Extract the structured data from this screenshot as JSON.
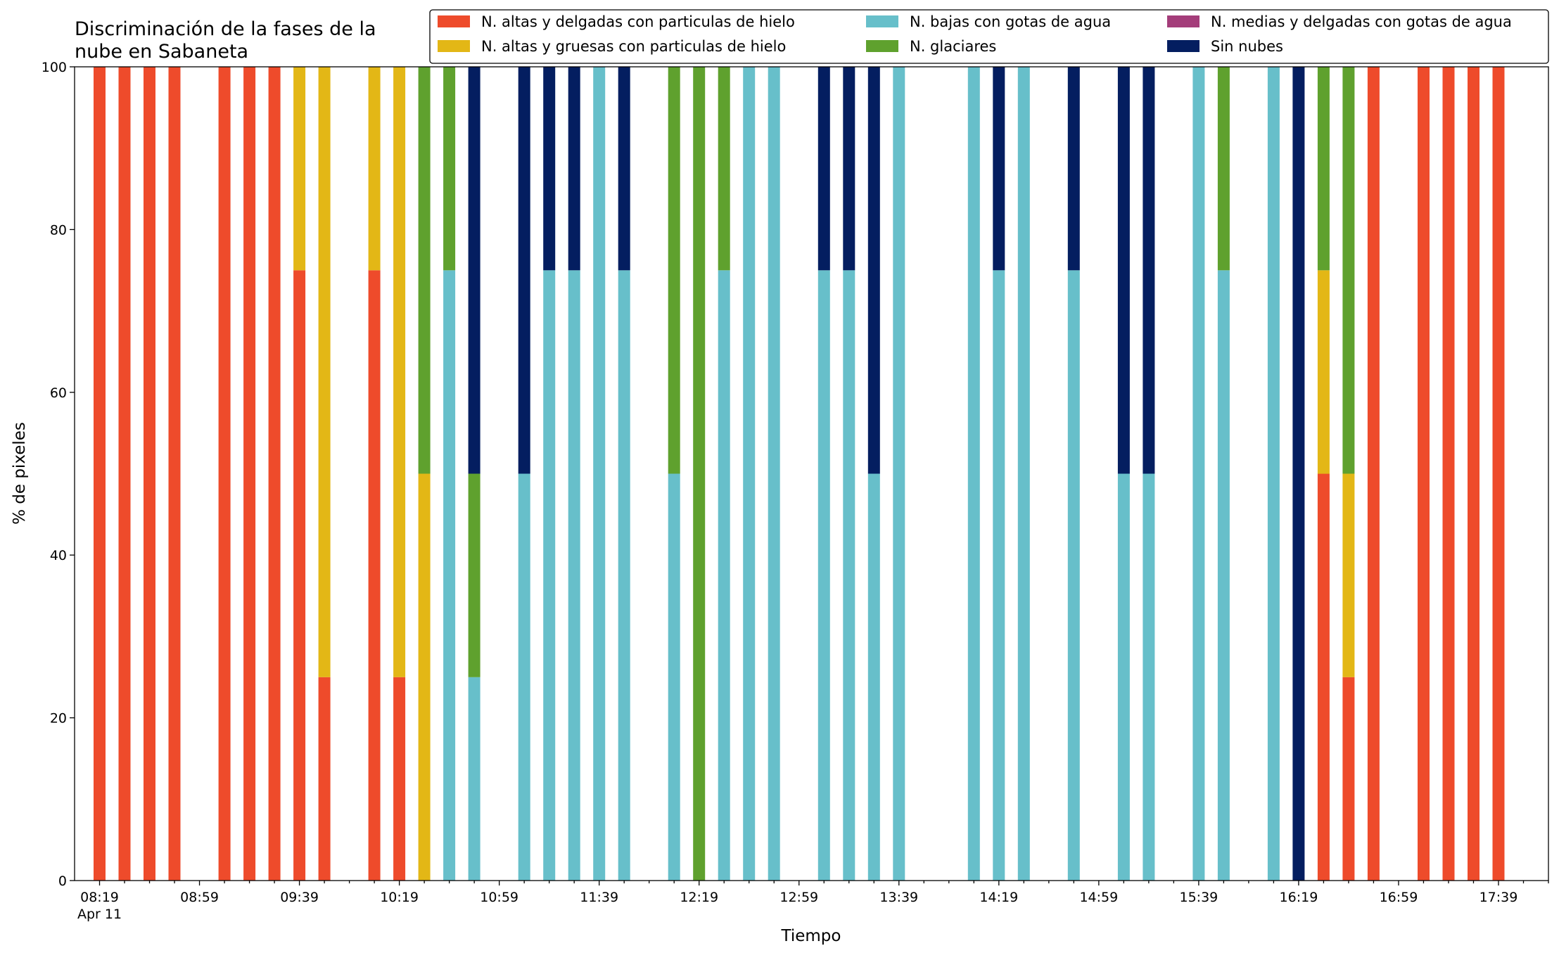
{
  "chart_data": {
    "type": "bar",
    "stacked": true,
    "title_lines": [
      "Discriminación de la fases de la",
      "nube en Sabaneta"
    ],
    "xlabel": "Tiempo",
    "ylabel": "% de pixeles",
    "ylim": [
      0,
      100
    ],
    "yticks": [
      0,
      20,
      40,
      60,
      80,
      100
    ],
    "x_date_label": "Apr 11",
    "x_range": [
      "08:09",
      "17:59"
    ],
    "x_tick_labels": [
      "08:19",
      "08:59",
      "09:39",
      "10:19",
      "10:59",
      "11:39",
      "12:19",
      "12:59",
      "13:39",
      "14:19",
      "14:59",
      "15:39",
      "16:19",
      "16:59",
      "17:39"
    ],
    "grid": false,
    "legend_position": "top-right",
    "colors": {
      "high_thin_ice": "#ee4b2b",
      "high_thick_ice": "#e3b716",
      "low_water": "#67bfca",
      "glacier": "#5fa12e",
      "mid_thin_water": "#a43d7a",
      "clear": "#041e60"
    },
    "series": [
      {
        "key": "high_thin_ice",
        "name": "N. altas y delgadas con particulas de hielo"
      },
      {
        "key": "high_thick_ice",
        "name": "N. altas y gruesas con particulas de hielo"
      },
      {
        "key": "low_water",
        "name": "N. bajas con gotas de agua"
      },
      {
        "key": "glacier",
        "name": "N. glaciares"
      },
      {
        "key": "mid_thin_water",
        "name": "N. medias y delgadas con gotas de agua"
      },
      {
        "key": "clear",
        "name": "Sin nubes"
      }
    ],
    "bars": [
      {
        "t": "08:19",
        "values": {
          "high_thin_ice": 100
        }
      },
      {
        "t": "08:29",
        "values": {
          "high_thin_ice": 100
        }
      },
      {
        "t": "08:39",
        "values": {
          "high_thin_ice": 100
        }
      },
      {
        "t": "08:49",
        "values": {
          "high_thin_ice": 100
        }
      },
      {
        "t": "09:09",
        "values": {
          "high_thin_ice": 100
        }
      },
      {
        "t": "09:19",
        "values": {
          "high_thin_ice": 100
        }
      },
      {
        "t": "09:29",
        "values": {
          "high_thin_ice": 100
        }
      },
      {
        "t": "09:39",
        "values": {
          "high_thin_ice": 75,
          "high_thick_ice": 25
        }
      },
      {
        "t": "09:49",
        "values": {
          "high_thin_ice": 25,
          "high_thick_ice": 75
        }
      },
      {
        "t": "10:09",
        "values": {
          "high_thin_ice": 75,
          "high_thick_ice": 25
        }
      },
      {
        "t": "10:19",
        "values": {
          "high_thin_ice": 25,
          "high_thick_ice": 75
        }
      },
      {
        "t": "10:29",
        "values": {
          "high_thick_ice": 50,
          "glacier": 50
        }
      },
      {
        "t": "10:39",
        "values": {
          "low_water": 75,
          "glacier": 25
        }
      },
      {
        "t": "10:49",
        "values": {
          "low_water": 25,
          "glacier": 25,
          "clear": 50
        }
      },
      {
        "t": "11:09",
        "values": {
          "low_water": 50,
          "clear": 50
        }
      },
      {
        "t": "11:19",
        "values": {
          "low_water": 75,
          "clear": 25
        }
      },
      {
        "t": "11:29",
        "values": {
          "low_water": 75,
          "clear": 25
        }
      },
      {
        "t": "11:39",
        "values": {
          "low_water": 100
        }
      },
      {
        "t": "11:49",
        "values": {
          "low_water": 75,
          "clear": 25
        }
      },
      {
        "t": "12:09",
        "values": {
          "low_water": 50,
          "glacier": 50
        }
      },
      {
        "t": "12:19",
        "values": {
          "glacier": 100
        }
      },
      {
        "t": "12:29",
        "values": {
          "low_water": 75,
          "glacier": 25
        }
      },
      {
        "t": "12:39",
        "values": {
          "low_water": 100
        }
      },
      {
        "t": "12:49",
        "values": {
          "low_water": 100
        }
      },
      {
        "t": "13:09",
        "values": {
          "low_water": 75,
          "clear": 25
        }
      },
      {
        "t": "13:19",
        "values": {
          "low_water": 75,
          "clear": 25
        }
      },
      {
        "t": "13:29",
        "values": {
          "low_water": 50,
          "clear": 50
        }
      },
      {
        "t": "13:39",
        "values": {
          "low_water": 100
        }
      },
      {
        "t": "14:09",
        "values": {
          "low_water": 100
        }
      },
      {
        "t": "14:19",
        "values": {
          "low_water": 75,
          "clear": 25
        }
      },
      {
        "t": "14:29",
        "values": {
          "low_water": 100
        }
      },
      {
        "t": "14:49",
        "values": {
          "low_water": 75,
          "clear": 25
        }
      },
      {
        "t": "15:09",
        "values": {
          "low_water": 50,
          "clear": 50
        }
      },
      {
        "t": "15:19",
        "values": {
          "low_water": 50,
          "clear": 50
        }
      },
      {
        "t": "15:39",
        "values": {
          "low_water": 100
        }
      },
      {
        "t": "15:49",
        "values": {
          "low_water": 75,
          "glacier": 25
        }
      },
      {
        "t": "16:09",
        "values": {
          "low_water": 100
        }
      },
      {
        "t": "16:19",
        "values": {
          "clear": 100
        }
      },
      {
        "t": "16:29",
        "values": {
          "high_thin_ice": 50,
          "high_thick_ice": 25,
          "glacier": 25
        }
      },
      {
        "t": "16:39",
        "values": {
          "high_thin_ice": 25,
          "high_thick_ice": 25,
          "glacier": 50
        }
      },
      {
        "t": "16:49",
        "values": {
          "high_thin_ice": 100
        }
      },
      {
        "t": "17:09",
        "values": {
          "high_thin_ice": 100
        }
      },
      {
        "t": "17:19",
        "values": {
          "high_thin_ice": 100
        }
      },
      {
        "t": "17:29",
        "values": {
          "high_thin_ice": 100
        }
      },
      {
        "t": "17:39",
        "values": {
          "high_thin_ice": 100
        }
      }
    ]
  }
}
